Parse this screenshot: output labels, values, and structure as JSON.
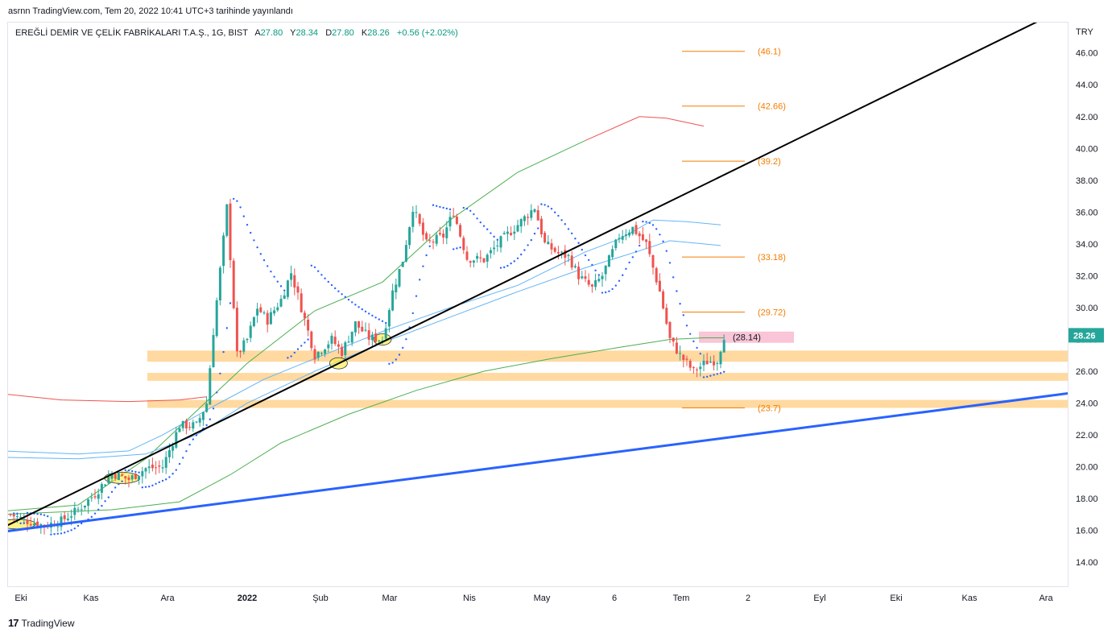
{
  "header": {
    "published_text": "asrnn TradingView.com, Tem 20, 2022 10:41 UTC+3 tarihinde yayınlandı"
  },
  "legend": {
    "symbol": "EREĞLİ DEMİR VE ÇELİK FABRİKALARI T.A.Ş., 1G, BIST",
    "open_label": "A",
    "open": "27.80",
    "high_label": "Y",
    "high": "28.34",
    "low_label": "D",
    "low": "27.80",
    "close_label": "K",
    "close": "28.26",
    "change": "+0.56 (+2.02%)"
  },
  "price_axis": {
    "currency": "TRY",
    "current_price_label": "28.26"
  },
  "footer": {
    "brand": "TradingView",
    "logo_text": "17"
  },
  "colors": {
    "up": "#26a69a",
    "down": "#ef5350",
    "sar": "#2962ff",
    "trend_black": "#000000",
    "trend_blue": "#2962ff",
    "zone": "#ffcc80",
    "fib_line": "#f57c00",
    "fib_text": "#f57c00",
    "sma_red": "#ef5350",
    "sma_green": "#4caf50",
    "sma_lightblue": "#64b5f6",
    "highlight": "#ffeb3b",
    "pink": "#f8bbd0"
  },
  "chart_data": {
    "type": "candlestick",
    "y_axis": {
      "ylim": [
        13,
        47.3
      ],
      "ticks": [
        "14.00",
        "16.00",
        "18.00",
        "20.00",
        "22.00",
        "24.00",
        "26.00",
        "28.00",
        "30.00",
        "32.00",
        "34.00",
        "36.00",
        "38.00",
        "40.00",
        "42.00",
        "44.00",
        "46.00"
      ]
    },
    "x_axis": {
      "tick_labels": [
        "Eki",
        "Kas",
        "Ara",
        "2022",
        "Şub",
        "Mar",
        "Nis",
        "May",
        "6",
        "Tem",
        "2",
        "Eyl",
        "Eki",
        "Kas",
        "Ara"
      ]
    },
    "fib_levels": [
      {
        "label": "(46.1)",
        "value": 46.1
      },
      {
        "label": "(42.66)",
        "value": 42.66
      },
      {
        "label": "(39.2)",
        "value": 39.2
      },
      {
        "label": "(33.18)",
        "value": 33.18
      },
      {
        "label": "(29.72)",
        "value": 29.72
      },
      {
        "label": "(28.14)",
        "value": 28.14
      },
      {
        "label": "(23.7)",
        "value": 23.7
      }
    ],
    "support_zones": [
      {
        "low": 26.6,
        "high": 27.3
      },
      {
        "low": 25.4,
        "high": 25.9
      },
      {
        "low": 23.7,
        "high": 24.2
      }
    ],
    "trendlines": [
      {
        "name": "black",
        "from": {
          "t": -3,
          "p": 16.1
        },
        "to": {
          "t": 304,
          "p": 48.0
        }
      },
      {
        "name": "blue",
        "from": {
          "t": -3,
          "p": 15.9
        },
        "to": {
          "t": 325,
          "p": 24.95
        }
      }
    ],
    "waypoints": [
      [
        0,
        17.0
      ],
      [
        5,
        16.6
      ],
      [
        10,
        16.3
      ],
      [
        15,
        16.6
      ],
      [
        20,
        17.3
      ],
      [
        25,
        18.3
      ],
      [
        30,
        19.6
      ],
      [
        35,
        19.2
      ],
      [
        40,
        19.9
      ],
      [
        45,
        20.0
      ],
      [
        50,
        22.6
      ],
      [
        55,
        22.6
      ],
      [
        58,
        24.0
      ],
      [
        60,
        28.5
      ],
      [
        63,
        34.3
      ],
      [
        64,
        36.3
      ],
      [
        67,
        27.0
      ],
      [
        70,
        28.0
      ],
      [
        73,
        30.0
      ],
      [
        76,
        29.2
      ],
      [
        80,
        30.5
      ],
      [
        83,
        32.2
      ],
      [
        86,
        30.0
      ],
      [
        90,
        27.0
      ],
      [
        95,
        28.0
      ],
      [
        98,
        27.2
      ],
      [
        102,
        29.0
      ],
      [
        106,
        28.1
      ],
      [
        110,
        28.0
      ],
      [
        113,
        31.0
      ],
      [
        116,
        33.0
      ],
      [
        119,
        36.3
      ],
      [
        123,
        34.0
      ],
      [
        128,
        34.5
      ],
      [
        131,
        36.0
      ],
      [
        135,
        33.1
      ],
      [
        140,
        33.0
      ],
      [
        145,
        34.2
      ],
      [
        150,
        35.2
      ],
      [
        155,
        36.3
      ],
      [
        158,
        34.0
      ],
      [
        162,
        33.4
      ],
      [
        165,
        33.2
      ],
      [
        168,
        32.0
      ],
      [
        172,
        31.2
      ],
      [
        175,
        32.0
      ],
      [
        180,
        34.5
      ],
      [
        184,
        35.0
      ],
      [
        188,
        34.0
      ],
      [
        192,
        31.0
      ],
      [
        195,
        28.0
      ],
      [
        198,
        27.0
      ],
      [
        202,
        26.0
      ],
      [
        206,
        26.6
      ],
      [
        209,
        26.7
      ],
      [
        211,
        28.26
      ]
    ],
    "sma_green_inner": [
      [
        -3,
        17.2
      ],
      [
        20,
        17.6
      ],
      [
        40,
        20.5
      ],
      [
        55,
        23.5
      ],
      [
        70,
        26.5
      ],
      [
        90,
        29.8
      ],
      [
        110,
        31.6
      ],
      [
        130,
        35.5
      ],
      [
        150,
        38.5
      ],
      [
        170,
        40.5
      ],
      [
        186,
        42.0
      ],
      [
        194,
        41.9
      ],
      [
        205,
        41.4
      ]
    ],
    "sma_green_outer": [
      [
        -3,
        17.0
      ],
      [
        30,
        17.3
      ],
      [
        50,
        17.8
      ],
      [
        65,
        19.5
      ],
      [
        80,
        21.5
      ],
      [
        100,
        23.3
      ],
      [
        120,
        24.8
      ],
      [
        140,
        26.0
      ],
      [
        160,
        26.8
      ],
      [
        180,
        27.5
      ],
      [
        195,
        28.0
      ],
      [
        205,
        28.1
      ],
      [
        211,
        28.1
      ]
    ],
    "sma_red": [
      [
        -3,
        24.6
      ],
      [
        15,
        24.2
      ],
      [
        35,
        24.1
      ],
      [
        50,
        24.2
      ],
      [
        58,
        24.4
      ]
    ],
    "sma_lightblue_1": [
      [
        -3,
        21.0
      ],
      [
        20,
        20.8
      ],
      [
        35,
        21.0
      ],
      [
        45,
        22.0
      ],
      [
        60,
        23.8
      ],
      [
        75,
        25.5
      ],
      [
        90,
        26.8
      ],
      [
        110,
        28.5
      ],
      [
        130,
        30.0
      ],
      [
        150,
        31.4
      ],
      [
        170,
        33.5
      ],
      [
        180,
        34.3
      ],
      [
        190,
        35.5
      ],
      [
        200,
        35.4
      ],
      [
        210,
        35.2
      ]
    ],
    "sma_lightblue_2": [
      [
        -3,
        20.6
      ],
      [
        20,
        20.5
      ],
      [
        40,
        20.8
      ],
      [
        55,
        22.0
      ],
      [
        70,
        24.0
      ],
      [
        90,
        26.0
      ],
      [
        110,
        27.8
      ],
      [
        130,
        29.4
      ],
      [
        150,
        31.0
      ],
      [
        170,
        32.5
      ],
      [
        185,
        33.5
      ],
      [
        195,
        34.2
      ],
      [
        210,
        33.9
      ]
    ]
  }
}
